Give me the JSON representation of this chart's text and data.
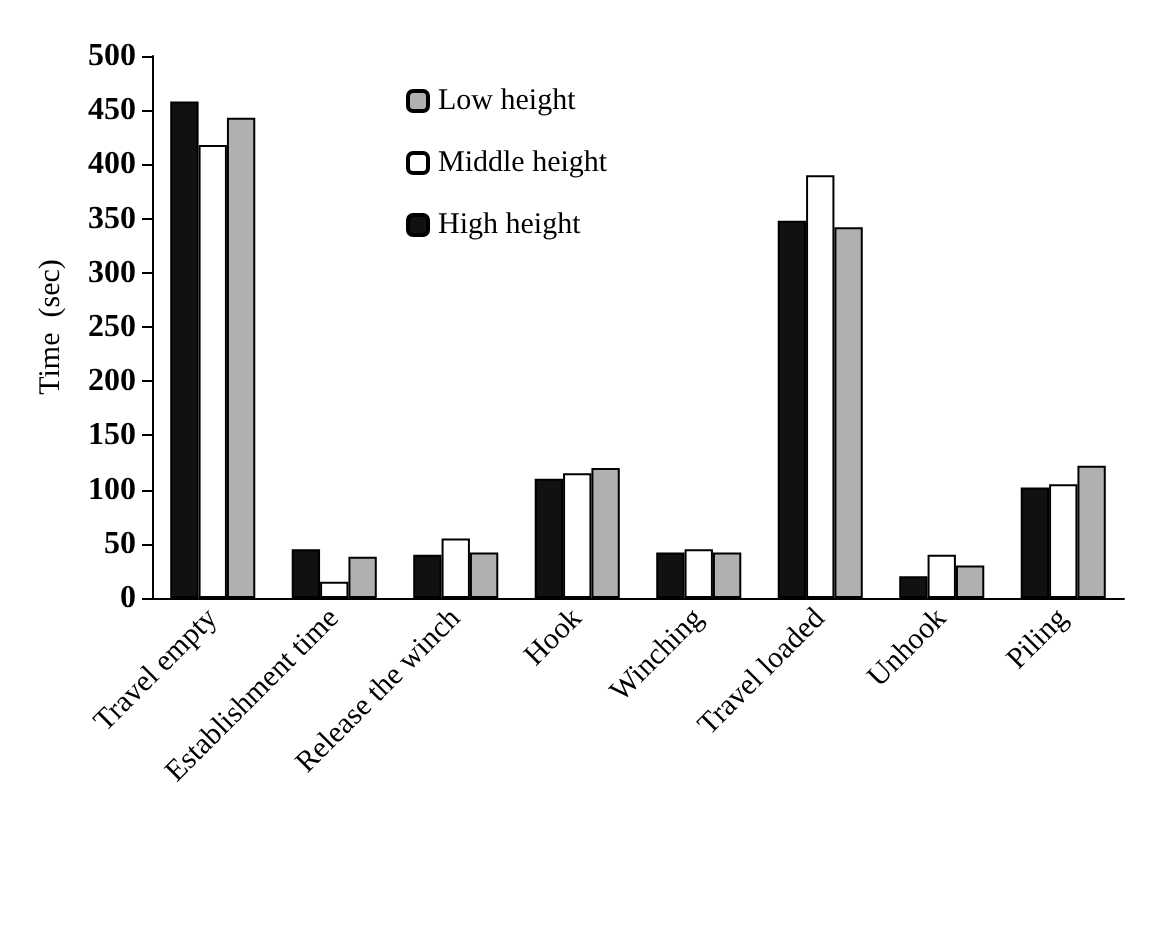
{
  "chart_data": {
    "type": "bar",
    "ylabel": "Time  (sec)",
    "categories": [
      "Travel empty",
      "Establishment time",
      "Release the winch",
      "Hook",
      "Winching",
      "Travel loaded",
      "Unhook",
      "Piling"
    ],
    "series": [
      {
        "name": "High height",
        "color": "#111111",
        "values": [
          458,
          45,
          40,
          110,
          42,
          348,
          20,
          102
        ]
      },
      {
        "name": "Middle height",
        "color": "#ffffff",
        "values": [
          418,
          15,
          55,
          115,
          45,
          390,
          40,
          105
        ]
      },
      {
        "name": "Low height",
        "color": "#b0b0b0",
        "values": [
          443,
          38,
          42,
          120,
          42,
          342,
          30,
          122
        ]
      }
    ],
    "ylim": [
      0,
      500
    ],
    "yticks": [
      0,
      50,
      100,
      150,
      200,
      250,
      300,
      350,
      400,
      450,
      500
    ],
    "grid": false,
    "legend": "top"
  }
}
